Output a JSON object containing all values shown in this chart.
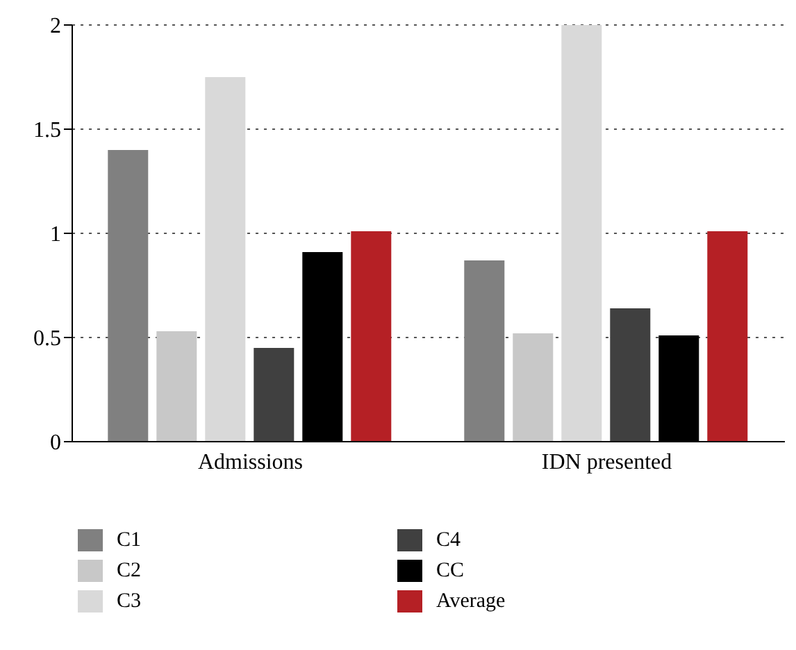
{
  "chart_data": {
    "type": "bar",
    "categories": [
      "Admissions",
      "IDN presented"
    ],
    "series": [
      {
        "name": "C1",
        "color": "#808080",
        "values": [
          1.4,
          0.87
        ]
      },
      {
        "name": "C2",
        "color": "#c8c8c8",
        "values": [
          0.53,
          0.52
        ]
      },
      {
        "name": "C3",
        "color": "#d9d9d9",
        "values": [
          1.75,
          2.0
        ]
      },
      {
        "name": "C4",
        "color": "#404040",
        "values": [
          0.45,
          0.64
        ]
      },
      {
        "name": "CC",
        "color": "#000000",
        "values": [
          0.91,
          0.51
        ]
      },
      {
        "name": "Average",
        "color": "#b52025",
        "values": [
          1.01,
          1.01
        ]
      }
    ],
    "ylim": [
      0,
      2
    ],
    "yticks": [
      0,
      0.5,
      1,
      1.5,
      2
    ],
    "grid": "y",
    "legend": "bottom"
  }
}
